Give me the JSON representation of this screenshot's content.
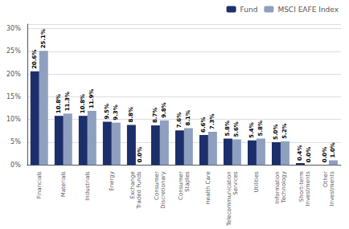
{
  "chart_data": {
    "type": "bar",
    "categories": [
      "Financials",
      "Materials",
      "Industrials",
      "Energy",
      "Exchange\nTraded Funds",
      "Consumer\nDiscretionary",
      "Consumer\nStaples",
      "Health Care",
      "Telecommunication\nServices",
      "Utilities",
      "Information\nTechnology",
      "Short-term\nInvestments",
      "Other\nInvestments"
    ],
    "series": [
      {
        "name": "Fund",
        "color": "#1c2f6b",
        "values": [
          20.6,
          10.8,
          10.8,
          9.5,
          8.8,
          8.7,
          7.6,
          6.6,
          5.8,
          5.4,
          5.0,
          0.4,
          0.0
        ],
        "value_labels": [
          "20.6%",
          "10.8%",
          "10.8%",
          "9.5%",
          "8.8%",
          "8.7%",
          "7.6%",
          "6.6%",
          "5.8%",
          "5.4%",
          "5.0%",
          "0.4%",
          "0.0%"
        ]
      },
      {
        "name": "MSCI EAFE Index",
        "color": "#8f9fc0",
        "values": [
          25.1,
          11.3,
          11.9,
          9.3,
          0.0,
          9.8,
          8.1,
          7.3,
          5.6,
          5.8,
          5.2,
          0.0,
          1.0
        ],
        "value_labels": [
          "25.1%",
          "11.3%",
          "11.9%",
          "9.3%",
          "0.0%",
          "9.8%",
          "8.1%",
          "7.3%",
          "5.6%",
          "5.8%",
          "5.2%",
          "0.0%",
          "1.0%"
        ]
      }
    ],
    "ylim": [
      0,
      31
    ],
    "yticks": [
      {
        "value": 0,
        "label": "0%"
      },
      {
        "value": 5,
        "label": "5%"
      },
      {
        "value": 10,
        "label": "10%"
      },
      {
        "value": 15,
        "label": "15%"
      },
      {
        "value": 20,
        "label": "20%"
      },
      {
        "value": 25,
        "label": "25%"
      },
      {
        "value": 30,
        "label": "30%"
      }
    ],
    "grid": true,
    "legend": "upper right",
    "data_labels": true
  }
}
